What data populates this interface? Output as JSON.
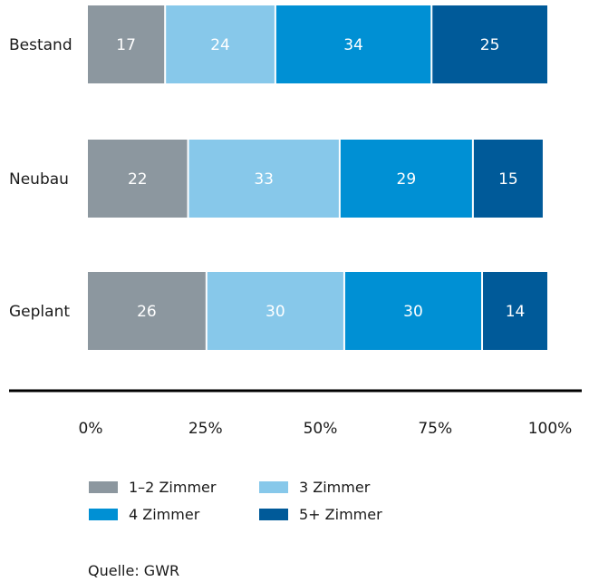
{
  "chart_data": {
    "type": "bar",
    "orientation": "horizontal",
    "stacked": true,
    "categories": [
      "Bestand",
      "Neubau",
      "Geplant"
    ],
    "series": [
      {
        "name": "1–2 Zimmer",
        "color": "#8c979f",
        "values": [
          17,
          22,
          26
        ]
      },
      {
        "name": "3 Zimmer",
        "color": "#87c8ea",
        "values": [
          24,
          33,
          30
        ]
      },
      {
        "name": "4 Zimmer",
        "color": "#0090d4",
        "values": [
          34,
          29,
          30
        ]
      },
      {
        "name": "5+ Zimmer",
        "color": "#005a99",
        "values": [
          25,
          15,
          14
        ]
      }
    ],
    "xlim": [
      0,
      100
    ],
    "xticks": [
      "0%",
      "25%",
      "50%",
      "75%",
      "100%"
    ],
    "legend_position": "bottom",
    "grid": false
  },
  "source": "Quelle: GWR"
}
